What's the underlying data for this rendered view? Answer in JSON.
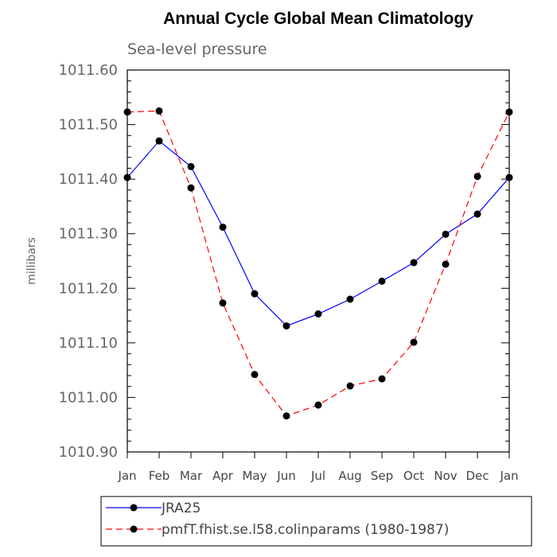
{
  "chart_data": {
    "type": "line",
    "title": "Annual Cycle Global Mean Climatology",
    "subtitle": "Sea-level pressure",
    "ylabel": "millibars",
    "xlabel": "",
    "categories": [
      "Jan",
      "Feb",
      "Mar",
      "Apr",
      "May",
      "Jun",
      "Jul",
      "Aug",
      "Sep",
      "Oct",
      "Nov",
      "Dec",
      "Jan"
    ],
    "ylim": [
      1010.9,
      1011.6
    ],
    "yticks": [
      1010.9,
      1011.0,
      1011.1,
      1011.2,
      1011.3,
      1011.4,
      1011.5,
      1011.6
    ],
    "ytick_labels": [
      "1010.90",
      "1011.00",
      "1011.10",
      "1011.20",
      "1011.30",
      "1011.40",
      "1011.50",
      "1011.60"
    ],
    "grid": false,
    "legend_position": "bottom-left",
    "series": [
      {
        "name": "JRA25",
        "color": "#0000ff",
        "dash": "solid",
        "marker": "circle",
        "values": [
          1011.403,
          1011.47,
          1011.423,
          1011.312,
          1011.19,
          1011.131,
          1011.153,
          1011.18,
          1011.213,
          1011.247,
          1011.299,
          1011.336,
          1011.403
        ]
      },
      {
        "name": "pmfT.fhist.se.l58.colinparams (1980-1987)",
        "color": "#ff0000",
        "dash": "dashed",
        "marker": "circle",
        "values": [
          1011.523,
          1011.525,
          1011.384,
          1011.173,
          1011.042,
          1010.966,
          1010.986,
          1011.021,
          1011.034,
          1011.101,
          1011.244,
          1011.405,
          1011.523
        ]
      }
    ]
  }
}
